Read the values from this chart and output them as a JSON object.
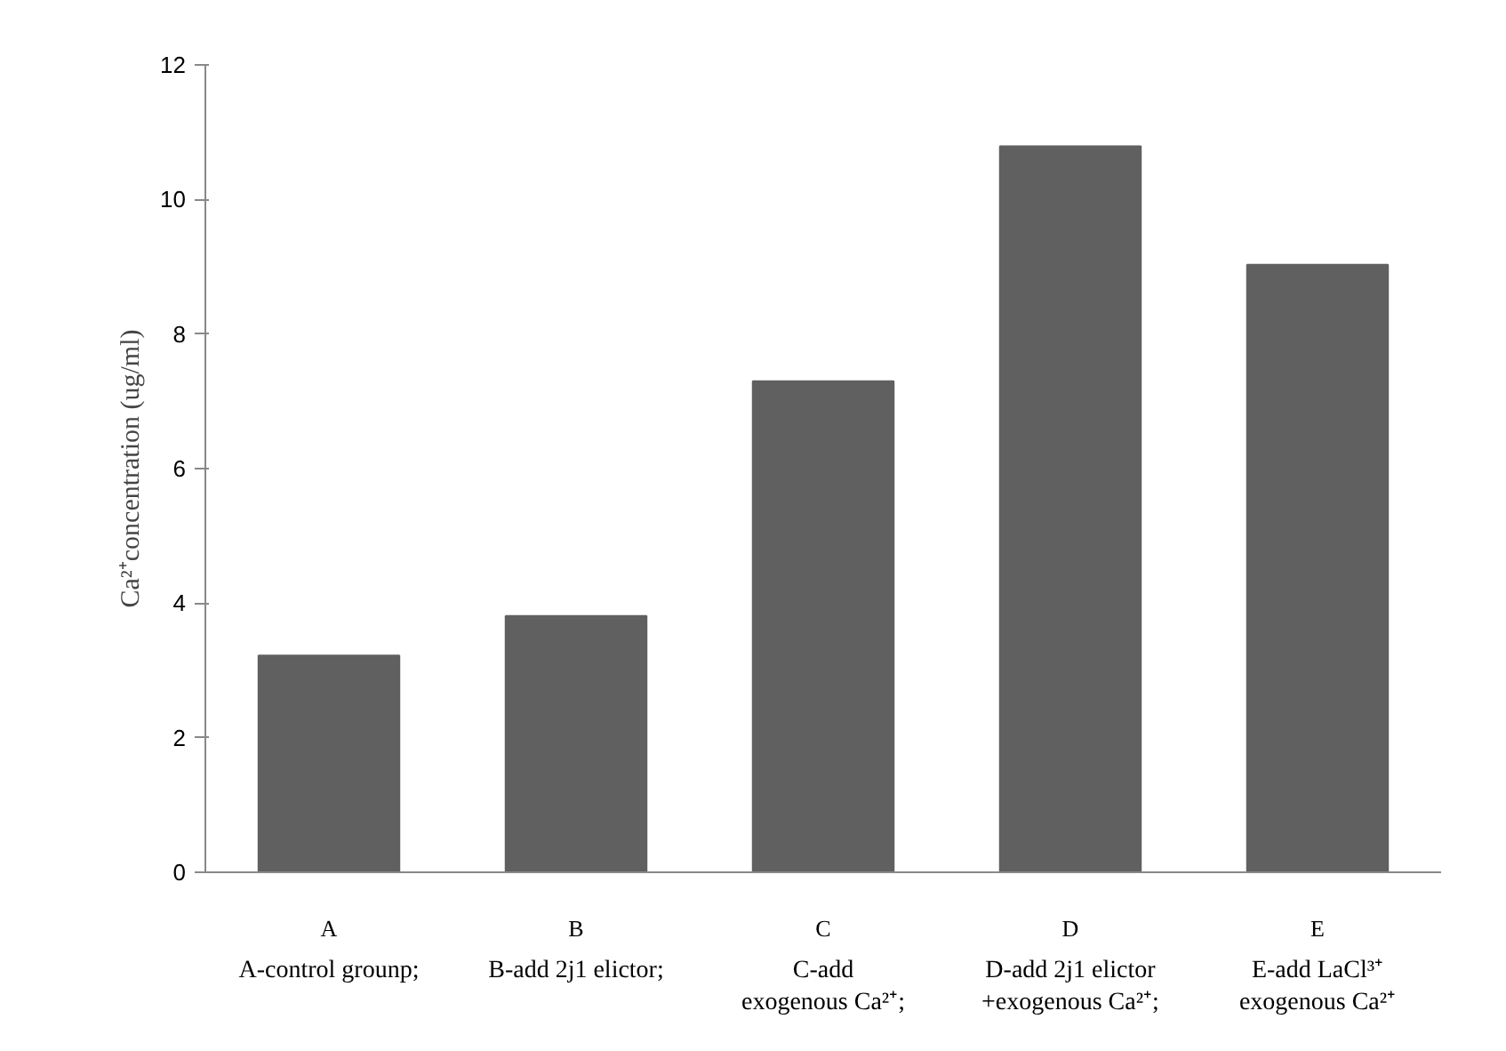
{
  "chart_data": {
    "type": "bar",
    "ylabel": "Ca²⁺concentration (ug/ml)",
    "categories": [
      "A",
      "B",
      "C",
      "D",
      "E"
    ],
    "values": [
      3.22,
      3.81,
      7.3,
      10.79,
      9.03
    ],
    "color": "#606060",
    "ylim": [
      0,
      12
    ],
    "yticks": [
      0,
      2,
      4,
      6,
      8,
      10,
      12
    ],
    "grid": false,
    "annotations": [
      "A-control grounp;",
      "B-add 2j1 elictor;",
      "C-add\nexogenous Ca²⁺;",
      "D-add 2j1 elictor\n+exogenous Ca²⁺;",
      "E-add LaCl³⁺\nexogenous Ca²⁺"
    ]
  }
}
